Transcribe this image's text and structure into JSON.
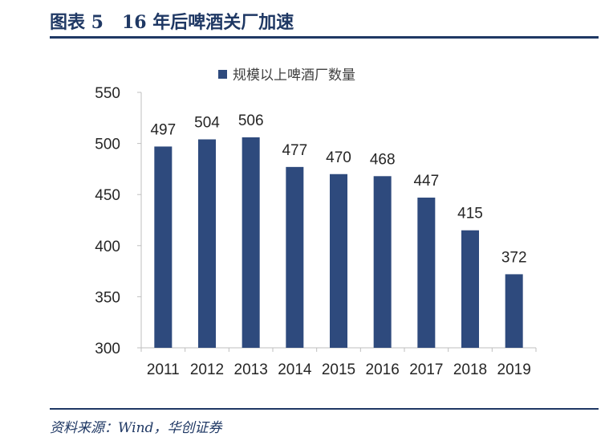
{
  "header": {
    "title": "图表 5   16 年后啤酒关厂加速"
  },
  "footer": {
    "source": "资料来源：Wind，华创证券"
  },
  "colors": {
    "bar": "#2e4a7d",
    "accent": "#1f3864",
    "axis": "#bfbfbf"
  },
  "chart_data": {
    "type": "bar",
    "categories": [
      "2011",
      "2012",
      "2013",
      "2014",
      "2015",
      "2016",
      "2017",
      "2018",
      "2019"
    ],
    "series": [
      {
        "name": "规模以上啤酒厂数量",
        "values": [
          497,
          504,
          506,
          477,
          470,
          468,
          447,
          415,
          372
        ]
      }
    ],
    "ylim": [
      300,
      550
    ],
    "yticks": [
      300,
      350,
      400,
      450,
      500,
      550
    ],
    "legend_position": "top",
    "grid": false
  }
}
